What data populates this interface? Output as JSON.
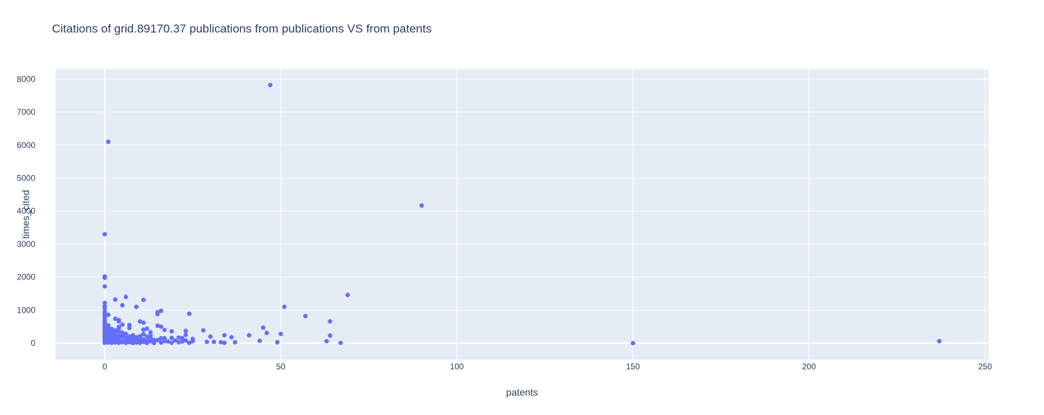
{
  "chart_data": {
    "type": "scatter",
    "title": "Citations of grid.89170.37 publications from publications VS from patents",
    "xlabel": "patents",
    "ylabel": "times_cited",
    "xlim": [
      -14,
      251
    ],
    "ylim": [
      -500,
      8300
    ],
    "xticks": [
      0,
      50,
      100,
      150,
      200,
      250
    ],
    "yticks": [
      0,
      1000,
      2000,
      3000,
      4000,
      5000,
      6000,
      7000,
      8000
    ],
    "grid": true,
    "marker_color": "#636efa",
    "plot_bgcolor": "#e5ecf6",
    "points": [
      [
        47,
        7820
      ],
      [
        1,
        6100
      ],
      [
        90,
        4170
      ],
      [
        0,
        3300
      ],
      [
        0,
        2020
      ],
      [
        0,
        1980
      ],
      [
        0,
        1720
      ],
      [
        69,
        1460
      ],
      [
        6,
        1400
      ],
      [
        3,
        1320
      ],
      [
        11,
        1310
      ],
      [
        0,
        1220
      ],
      [
        5,
        1150
      ],
      [
        0,
        1120
      ],
      [
        9,
        1100
      ],
      [
        51,
        1100
      ],
      [
        0,
        1050
      ],
      [
        16,
        980
      ],
      [
        0,
        950
      ],
      [
        15,
        940
      ],
      [
        0,
        900
      ],
      [
        24,
        890
      ],
      [
        1,
        860
      ],
      [
        15,
        880
      ],
      [
        57,
        820
      ],
      [
        3,
        740
      ],
      [
        0,
        720
      ],
      [
        4,
        700
      ],
      [
        10,
        660
      ],
      [
        4,
        660
      ],
      [
        64,
        660
      ],
      [
        11,
        620
      ],
      [
        0,
        600
      ],
      [
        5,
        560
      ],
      [
        7,
        550
      ],
      [
        1,
        540
      ],
      [
        15,
        530
      ],
      [
        16,
        500
      ],
      [
        4,
        490
      ],
      [
        45,
        470
      ],
      [
        7,
        460
      ],
      [
        0,
        450
      ],
      [
        12,
        440
      ],
      [
        2,
        430
      ],
      [
        11,
        410
      ],
      [
        17,
        400
      ],
      [
        0,
        400
      ],
      [
        3,
        390
      ],
      [
        28,
        390
      ],
      [
        23,
        370
      ],
      [
        13,
        330
      ],
      [
        19,
        360
      ],
      [
        46,
        310
      ],
      [
        0,
        320
      ],
      [
        50,
        280
      ],
      [
        1,
        300
      ],
      [
        6,
        280
      ],
      [
        11,
        270
      ],
      [
        8,
        240
      ],
      [
        41,
        240
      ],
      [
        23,
        250
      ],
      [
        34,
        240
      ],
      [
        64,
        230
      ],
      [
        4,
        220
      ],
      [
        13,
        220
      ],
      [
        12,
        200
      ],
      [
        30,
        200
      ],
      [
        21,
        170
      ],
      [
        36,
        180
      ],
      [
        19,
        160
      ],
      [
        16,
        150
      ],
      [
        17,
        150
      ],
      [
        22,
        150
      ],
      [
        10,
        140
      ],
      [
        25,
        130
      ],
      [
        2,
        120
      ],
      [
        9,
        120
      ],
      [
        14,
        100
      ],
      [
        6,
        100
      ],
      [
        23,
        80
      ],
      [
        44,
        70
      ],
      [
        25,
        60
      ],
      [
        18,
        50
      ],
      [
        22,
        50
      ],
      [
        29,
        40
      ],
      [
        31,
        40
      ],
      [
        33,
        30
      ],
      [
        37,
        30
      ],
      [
        49,
        30
      ],
      [
        63,
        60
      ],
      [
        16,
        20
      ],
      [
        19,
        10
      ],
      [
        24,
        10
      ],
      [
        34,
        10
      ],
      [
        67,
        10
      ],
      [
        150,
        0
      ],
      [
        237,
        60
      ],
      [
        12,
        30
      ],
      [
        8,
        60
      ],
      [
        3,
        70
      ],
      [
        0,
        100
      ],
      [
        0,
        150
      ],
      [
        0,
        200
      ],
      [
        0,
        250
      ],
      [
        0,
        350
      ],
      [
        0,
        500
      ],
      [
        0,
        550
      ],
      [
        0,
        650
      ],
      [
        0,
        800
      ],
      [
        0,
        850
      ],
      [
        1,
        120
      ],
      [
        1,
        200
      ],
      [
        1,
        250
      ],
      [
        1,
        350
      ],
      [
        1,
        420
      ],
      [
        1,
        480
      ],
      [
        2,
        60
      ],
      [
        2,
        180
      ],
      [
        2,
        260
      ],
      [
        2,
        320
      ],
      [
        2,
        380
      ],
      [
        3,
        120
      ],
      [
        3,
        180
      ],
      [
        3,
        250
      ],
      [
        3,
        300
      ],
      [
        4,
        40
      ],
      [
        4,
        140
      ],
      [
        4,
        350
      ],
      [
        4,
        420
      ],
      [
        5,
        30
      ],
      [
        5,
        200
      ],
      [
        5,
        260
      ],
      [
        5,
        320
      ],
      [
        6,
        50
      ],
      [
        6,
        160
      ],
      [
        6,
        210
      ],
      [
        7,
        80
      ],
      [
        7,
        140
      ],
      [
        7,
        200
      ],
      [
        8,
        20
      ],
      [
        8,
        150
      ],
      [
        9,
        40
      ],
      [
        9,
        180
      ],
      [
        10,
        70
      ],
      [
        10,
        210
      ],
      [
        11,
        120
      ],
      [
        12,
        70
      ],
      [
        13,
        150
      ],
      [
        14,
        40
      ],
      [
        15,
        90
      ],
      [
        17,
        60
      ],
      [
        20,
        80
      ],
      [
        21,
        30
      ],
      [
        2,
        10
      ],
      [
        4,
        10
      ],
      [
        6,
        10
      ],
      [
        8,
        5
      ],
      [
        10,
        10
      ],
      [
        12,
        5
      ],
      [
        14,
        5
      ],
      [
        1,
        20
      ],
      [
        3,
        20
      ],
      [
        5,
        60
      ],
      [
        7,
        30
      ],
      [
        9,
        20
      ],
      [
        11,
        40
      ],
      [
        13,
        60
      ],
      [
        0,
        10
      ],
      [
        0,
        30
      ],
      [
        0,
        60
      ]
    ]
  }
}
